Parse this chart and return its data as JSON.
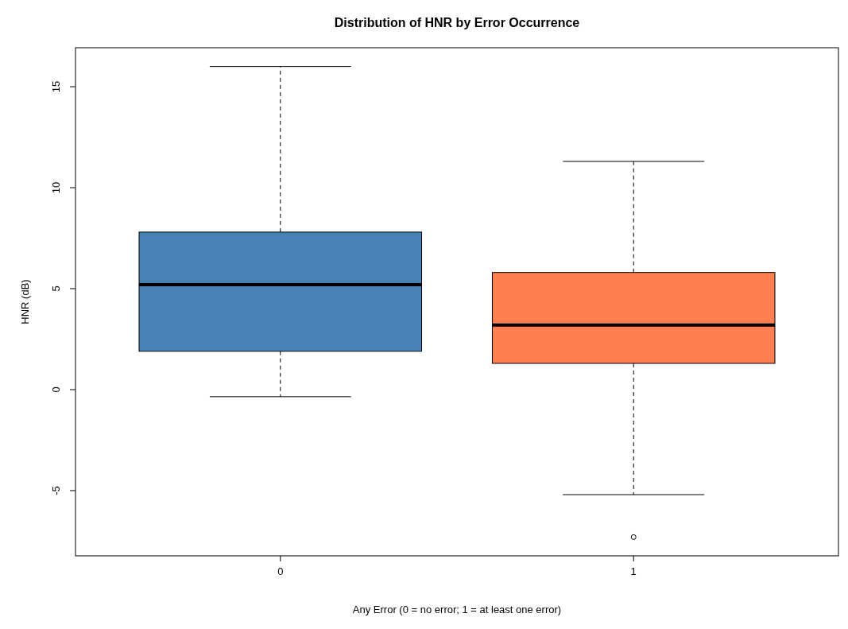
{
  "chart_data": {
    "type": "box",
    "title": "Distribution of HNR by Error Occurrence",
    "xlabel": "Any Error (0 = no error; 1 = at least one error)",
    "ylabel": "HNR (dB)",
    "categories": [
      "0",
      "1"
    ],
    "colors": [
      "#4682b4",
      "#ff7f50"
    ],
    "boxes": [
      {
        "low": -0.35,
        "q1": 1.9,
        "median": 5.2,
        "q3": 7.8,
        "high": 16.0
      },
      {
        "low": -5.2,
        "q1": 1.3,
        "median": 3.2,
        "q3": 5.8,
        "high": 11.3,
        "outliers": [
          -7.3
        ]
      }
    ],
    "ylim": [
      -8.23,
      16.93
    ],
    "yticks": [
      {
        "value": -5,
        "label": "-5"
      },
      0,
      5,
      10,
      15
    ],
    "grid": false
  }
}
